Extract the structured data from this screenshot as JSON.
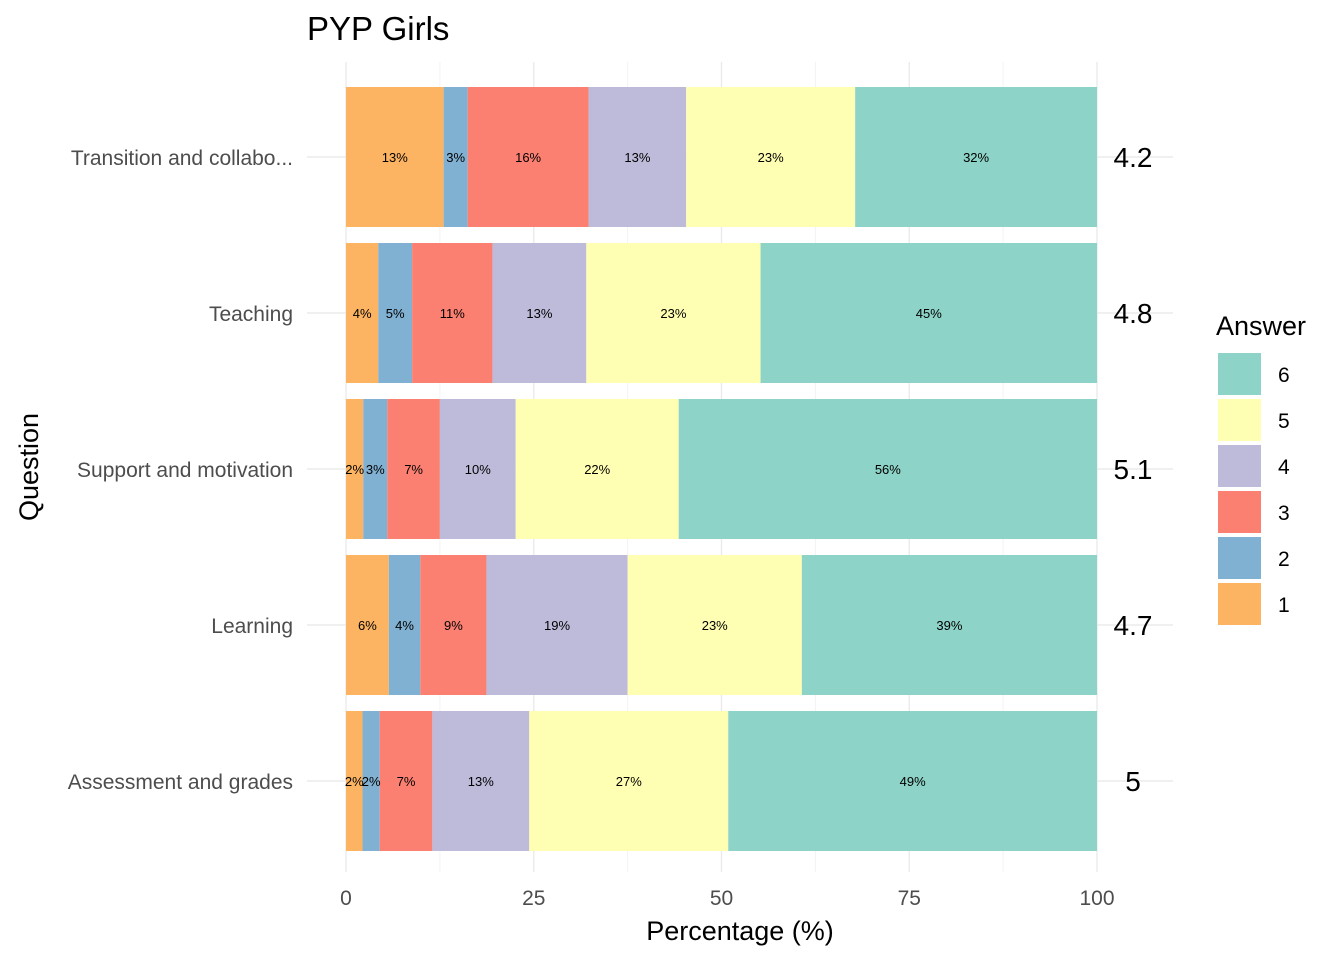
{
  "chart_data": {
    "type": "bar",
    "orientation": "horizontal",
    "stacked": true,
    "title": "PYP Girls",
    "xlabel": "Percentage (%)",
    "ylabel": "Question",
    "xlim": [
      0,
      100
    ],
    "x_ticks": [
      0,
      25,
      50,
      75,
      100
    ],
    "grid": true,
    "legend": {
      "title": "Answer",
      "position": "right"
    },
    "categories": [
      "Transition and collabo...",
      "Teaching",
      "Support and motivation",
      "Learning",
      "Assessment and grades"
    ],
    "series": [
      {
        "name": "1",
        "color": "#FDB462",
        "values": [
          13,
          4.3,
          2.3,
          5.7,
          2.2
        ]
      },
      {
        "name": "2",
        "color": "#80B1D3",
        "values": [
          3.2,
          4.5,
          3.2,
          4.2,
          2.3
        ]
      },
      {
        "name": "3",
        "color": "#FB8072",
        "values": [
          16.1,
          10.7,
          7.0,
          8.8,
          7.0
        ]
      },
      {
        "name": "4",
        "color": "#BEBADA",
        "values": [
          13.0,
          12.5,
          10.1,
          18.8,
          12.9
        ]
      },
      {
        "name": "5",
        "color": "#FFFFB3",
        "values": [
          22.5,
          23.2,
          21.7,
          23.2,
          26.5
        ]
      },
      {
        "name": "6",
        "color": "#8DD3C7",
        "values": [
          32.2,
          44.8,
          55.7,
          39.3,
          49.1
        ]
      }
    ],
    "data_labels": [
      [
        "13%",
        "3%",
        "16%",
        "13%",
        "23%",
        "32%"
      ],
      [
        "4%",
        "5%",
        "11%",
        "13%",
        "23%",
        "45%"
      ],
      [
        "2%",
        "3%",
        "7%",
        "10%",
        "22%",
        "56%"
      ],
      [
        "6%",
        "4%",
        "9%",
        "19%",
        "23%",
        "39%"
      ],
      [
        "2%",
        "2%",
        "7%",
        "13%",
        "27%",
        "49%"
      ]
    ],
    "means": [
      "4.2",
      "4.8",
      "5.1",
      "4.7",
      "5"
    ]
  }
}
